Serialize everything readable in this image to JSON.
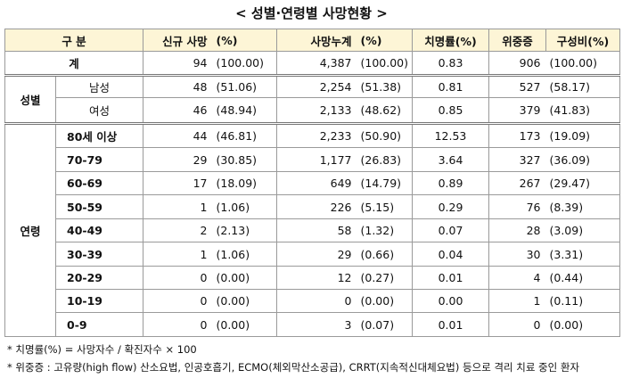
{
  "title": "< 성별·연령별 사망현황 >",
  "table": {
    "header": [
      "구 분",
      "신규 사망",
      "(%)",
      "사망누계",
      "(%)",
      "치명률(%)",
      "위중증",
      "구성비(%)"
    ],
    "total": {
      "label": "계",
      "cells": [
        "94",
        "(100.00)",
        "4,387",
        "(100.00)",
        "0.83",
        "906",
        "(100.00)"
      ]
    },
    "groups": [
      {
        "label": "성별",
        "rows": [
          {
            "label": "남성",
            "cells": [
              "48",
              "(51.06)",
              "2,254",
              "(51.38)",
              "0.81",
              "527",
              "(58.17)"
            ]
          },
          {
            "label": "여성",
            "cells": [
              "46",
              "(48.94)",
              "2,133",
              "(48.62)",
              "0.85",
              "379",
              "(41.83)"
            ]
          }
        ]
      },
      {
        "label": "연령",
        "rows": [
          {
            "label": "80세 이상",
            "cells": [
              "44",
              "(46.81)",
              "2,233",
              "(50.90)",
              "12.53",
              "173",
              "(19.09)"
            ]
          },
          {
            "label": "70-79",
            "cells": [
              "29",
              "(30.85)",
              "1,177",
              "(26.83)",
              "3.64",
              "327",
              "(36.09)"
            ]
          },
          {
            "label": "60-69",
            "cells": [
              "17",
              "(18.09)",
              "649",
              "(14.79)",
              "0.89",
              "267",
              "(29.47)"
            ]
          },
          {
            "label": "50-59",
            "cells": [
              "1",
              "(1.06)",
              "226",
              "(5.15)",
              "0.29",
              "76",
              "(8.39)"
            ]
          },
          {
            "label": "40-49",
            "cells": [
              "2",
              "(2.13)",
              "58",
              "(1.32)",
              "0.07",
              "28",
              "(3.09)"
            ]
          },
          {
            "label": "30-39",
            "cells": [
              "1",
              "(1.06)",
              "29",
              "(0.66)",
              "0.04",
              "30",
              "(3.31)"
            ]
          },
          {
            "label": "20-29",
            "cells": [
              "0",
              "(0.00)",
              "12",
              "(0.27)",
              "0.01",
              "4",
              "(0.44)"
            ]
          },
          {
            "label": "10-19",
            "cells": [
              "0",
              "(0.00)",
              "0",
              "(0.00)",
              "0.00",
              "1",
              "(0.11)"
            ]
          },
          {
            "label": "0-9",
            "cells": [
              "0",
              "(0.00)",
              "3",
              "(0.07)",
              "0.01",
              "0",
              "(0.00)"
            ]
          }
        ]
      }
    ]
  },
  "footnotes": [
    "* 치명률(%) = 사망자수 / 확진자수 × 100",
    "* 위중증 : 고유량(high flow) 산소요법, 인공호흡기, ECMO(체외막산소공급), CRRT(지속적신대체요법) 등으로 격리 치료 중인 환자"
  ]
}
